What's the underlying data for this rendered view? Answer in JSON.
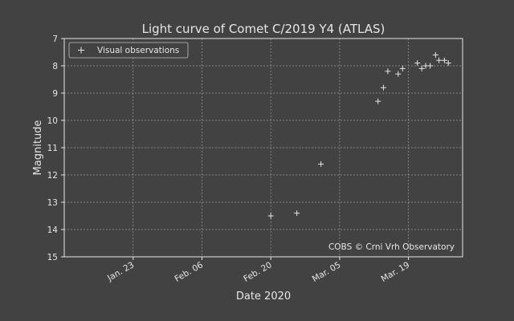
{
  "chart_data": {
    "type": "scatter",
    "title": "Light curve of Comet C/2019 Y4 (ATLAS)",
    "xlabel": "Date 2020",
    "ylabel": "Magnitude",
    "ylim": [
      15,
      7
    ],
    "y_inverted": true,
    "yticks": [
      7,
      8,
      9,
      10,
      11,
      12,
      13,
      14,
      15
    ],
    "xlim_day_of_year": [
      9,
      90
    ],
    "xticks": [
      {
        "label": "Jan. 23",
        "day": 23
      },
      {
        "label": "Feb. 06",
        "day": 37
      },
      {
        "label": "Feb. 20",
        "day": 51
      },
      {
        "label": "Mar. 05",
        "day": 65
      },
      {
        "label": "Mar. 19",
        "day": 79
      }
    ],
    "grid": true,
    "legend": {
      "position": "top-left",
      "entries": [
        "Visual observations"
      ]
    },
    "annotation": "COBS © Crni Vrh Observatory",
    "colors": {
      "background": "#424242",
      "foreground": "#e6e6e6",
      "grid": "#9a9a9a"
    },
    "series": [
      {
        "name": "Visual observations",
        "marker": "+",
        "points": [
          {
            "day": 51.0,
            "mag": 13.5
          },
          {
            "day": 56.3,
            "mag": 13.4
          },
          {
            "day": 61.2,
            "mag": 11.6
          },
          {
            "day": 72.8,
            "mag": 9.3
          },
          {
            "day": 73.9,
            "mag": 8.8
          },
          {
            "day": 74.8,
            "mag": 8.2
          },
          {
            "day": 76.9,
            "mag": 8.3
          },
          {
            "day": 77.8,
            "mag": 8.1
          },
          {
            "day": 80.8,
            "mag": 7.9
          },
          {
            "day": 81.7,
            "mag": 8.1
          },
          {
            "day": 82.5,
            "mag": 8.0
          },
          {
            "day": 83.4,
            "mag": 8.0
          },
          {
            "day": 84.5,
            "mag": 7.6
          },
          {
            "day": 85.2,
            "mag": 7.8
          },
          {
            "day": 86.3,
            "mag": 7.8
          },
          {
            "day": 87.1,
            "mag": 7.9
          }
        ]
      }
    ]
  }
}
